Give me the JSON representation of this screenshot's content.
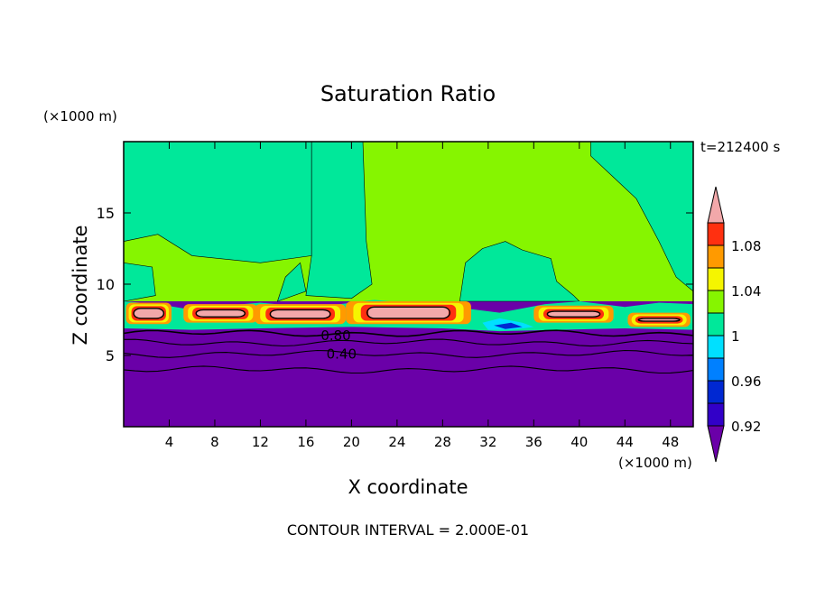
{
  "chart_data": {
    "type": "heatmap",
    "title": "Saturation Ratio",
    "xlabel": "X coordinate",
    "ylabel": "Z coordinate",
    "x_unit": "(×1000 m)",
    "y_unit": "(×1000 m)",
    "time_label": "t=212400 s",
    "footer": "CONTOUR INTERVAL = 2.000E-01",
    "xlim": [
      0,
      50
    ],
    "ylim": [
      0,
      20
    ],
    "x_ticks": [
      4,
      8,
      12,
      16,
      20,
      24,
      28,
      32,
      36,
      40,
      44,
      48
    ],
    "y_ticks": [
      5,
      10,
      15
    ],
    "contour_labels": [
      {
        "text": "0.80",
        "x": 17.3,
        "z": 6.4
      },
      {
        "text": "0.40",
        "x": 17.8,
        "z": 5.1
      }
    ],
    "colorbar": {
      "labels": [
        "1.08",
        "1.04",
        "1",
        "0.96",
        "0.92"
      ],
      "levels": [
        0.9,
        0.92,
        0.94,
        0.96,
        0.98,
        1.0,
        1.02,
        1.04,
        1.06,
        1.08,
        1.1
      ],
      "colors": [
        "#6a00a8",
        "#3200c8",
        "#0028d2",
        "#0080ff",
        "#00e0ff",
        "#00e89a",
        "#86f500",
        "#f5f500",
        "#ff9a00",
        "#ff3010",
        "#f2a8aa"
      ]
    },
    "regions": {
      "below_cloud": {
        "z_max": 6.8,
        "value": 0.9
      },
      "cloud_layer": {
        "z_min": 6.8,
        "z_max": 8.8
      },
      "upper_layer": {
        "z_min": 8.8,
        "z_max": 20
      }
    }
  }
}
